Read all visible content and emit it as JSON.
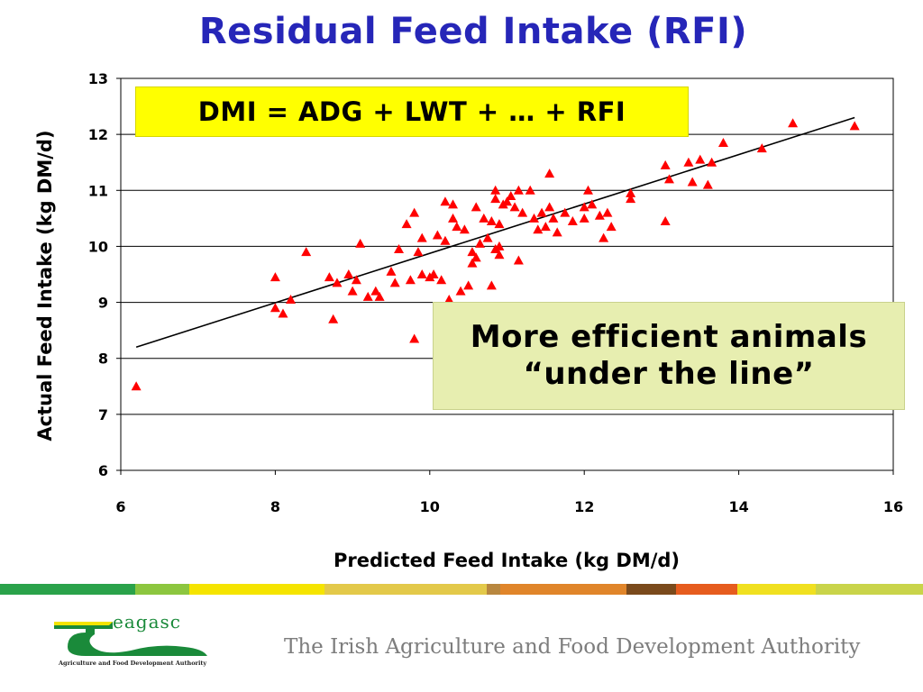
{
  "page": {
    "title": "Residual Feed Intake (RFI)",
    "formula": "DMI = ADG + LWT + … + RFI",
    "callout_line1": "More efficient animals",
    "callout_line2": "“under the line”",
    "footer_tagline": "The Irish Agriculture and Food Development Authority",
    "logo_word": "eagasc",
    "logo_subtitle": "Agriculture and Food Development Authority"
  },
  "colors": {
    "title": "#2626b8",
    "marker": "#ff0000",
    "formula_bg": "#ffff00",
    "callout_bg": "#e7eeb0",
    "logo_green": "#1a8a3a",
    "stripes": [
      "#2aa24a",
      "#8cc63f",
      "#f5e400",
      "#e3c94a",
      "#b8873f",
      "#e0852a",
      "#7a4a1c",
      "#e65c1e",
      "#f0e020",
      "#c9d44a"
    ]
  },
  "chart_data": {
    "type": "scatter",
    "xlabel": "Predicted Feed Intake (kg DM/d)",
    "ylabel": "Actual Feed Intake (kg DM/d)",
    "xlim": [
      6,
      16
    ],
    "ylim": [
      6,
      13
    ],
    "xticks": [
      6,
      8,
      10,
      12,
      14,
      16
    ],
    "yticks": [
      6,
      7,
      8,
      9,
      10,
      11,
      12,
      13
    ],
    "grid": "horizontal",
    "marker": "triangle",
    "trendline": [
      [
        6.2,
        8.2
      ],
      [
        15.5,
        12.3
      ]
    ],
    "points": [
      [
        6.2,
        7.5
      ],
      [
        8.0,
        9.45
      ],
      [
        8.0,
        8.9
      ],
      [
        8.1,
        8.8
      ],
      [
        8.2,
        9.05
      ],
      [
        8.4,
        9.9
      ],
      [
        8.7,
        9.45
      ],
      [
        8.75,
        8.7
      ],
      [
        8.8,
        9.35
      ],
      [
        8.95,
        9.5
      ],
      [
        9.0,
        9.2
      ],
      [
        9.05,
        9.4
      ],
      [
        9.1,
        10.05
      ],
      [
        9.2,
        9.1
      ],
      [
        9.3,
        9.2
      ],
      [
        9.35,
        9.1
      ],
      [
        9.5,
        9.55
      ],
      [
        9.55,
        9.35
      ],
      [
        9.6,
        9.95
      ],
      [
        9.7,
        10.4
      ],
      [
        9.75,
        9.4
      ],
      [
        9.8,
        10.6
      ],
      [
        9.8,
        8.35
      ],
      [
        9.85,
        9.9
      ],
      [
        9.9,
        9.5
      ],
      [
        9.9,
        10.15
      ],
      [
        10.0,
        9.45
      ],
      [
        10.05,
        9.5
      ],
      [
        10.1,
        10.2
      ],
      [
        10.15,
        9.4
      ],
      [
        10.2,
        10.1
      ],
      [
        10.2,
        10.8
      ],
      [
        10.25,
        9.05
      ],
      [
        10.3,
        10.75
      ],
      [
        10.3,
        10.5
      ],
      [
        10.35,
        10.35
      ],
      [
        10.4,
        9.2
      ],
      [
        10.45,
        10.3
      ],
      [
        10.5,
        9.3
      ],
      [
        10.55,
        9.7
      ],
      [
        10.55,
        9.9
      ],
      [
        10.6,
        10.7
      ],
      [
        10.6,
        9.8
      ],
      [
        10.65,
        10.05
      ],
      [
        10.7,
        10.5
      ],
      [
        10.75,
        10.15
      ],
      [
        10.8,
        9.3
      ],
      [
        10.8,
        10.45
      ],
      [
        10.85,
        9.95
      ],
      [
        10.85,
        10.85
      ],
      [
        10.85,
        11.0
      ],
      [
        10.9,
        10.0
      ],
      [
        10.9,
        10.4
      ],
      [
        10.9,
        9.85
      ],
      [
        10.95,
        10.75
      ],
      [
        11.0,
        10.8
      ],
      [
        11.05,
        10.9
      ],
      [
        11.1,
        10.7
      ],
      [
        11.15,
        11.0
      ],
      [
        11.15,
        9.75
      ],
      [
        11.2,
        10.6
      ],
      [
        11.3,
        11.0
      ],
      [
        11.35,
        10.5
      ],
      [
        11.4,
        10.3
      ],
      [
        11.45,
        10.6
      ],
      [
        11.5,
        10.35
      ],
      [
        11.55,
        10.7
      ],
      [
        11.55,
        11.3
      ],
      [
        11.6,
        10.5
      ],
      [
        11.65,
        10.25
      ],
      [
        11.75,
        10.6
      ],
      [
        11.85,
        10.45
      ],
      [
        12.0,
        10.5
      ],
      [
        12.0,
        10.7
      ],
      [
        12.05,
        11.0
      ],
      [
        12.1,
        10.75
      ],
      [
        12.2,
        10.55
      ],
      [
        12.25,
        10.15
      ],
      [
        12.3,
        10.6
      ],
      [
        12.35,
        10.35
      ],
      [
        12.6,
        10.95
      ],
      [
        12.6,
        10.85
      ],
      [
        13.05,
        11.45
      ],
      [
        13.05,
        10.45
      ],
      [
        13.1,
        11.2
      ],
      [
        13.35,
        11.5
      ],
      [
        13.4,
        11.15
      ],
      [
        13.5,
        11.55
      ],
      [
        13.6,
        11.1
      ],
      [
        13.65,
        11.5
      ],
      [
        13.8,
        11.85
      ],
      [
        14.3,
        11.75
      ],
      [
        14.7,
        12.2
      ],
      [
        15.5,
        12.15
      ]
    ]
  }
}
